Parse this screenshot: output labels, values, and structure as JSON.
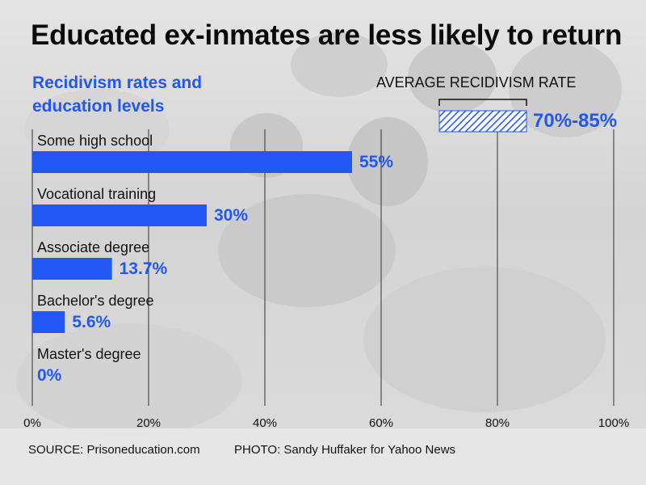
{
  "title": "Educated ex-inmates are less likely to return",
  "subtitle": "Recidivism rates and education levels",
  "average": {
    "label": "AVERAGE RECIDIVISM RATE",
    "value_text": "70%-85%",
    "low": 70,
    "high": 85
  },
  "footer": {
    "source": "SOURCE: Prisoneducation.com",
    "photo": "PHOTO: Sandy Huffaker for Yahoo News"
  },
  "colors": {
    "bar": "#2257f5",
    "text": "#111111"
  },
  "chart_data": {
    "type": "bar",
    "orientation": "horizontal",
    "categories": [
      "Some high school",
      "Vocational training",
      "Associate degree",
      "Bachelor's degree",
      "Master's degree"
    ],
    "values": [
      55,
      30,
      13.7,
      5.6,
      0
    ],
    "value_labels": [
      "55%",
      "30%",
      "13.7%",
      "5.6%",
      "0%"
    ],
    "xlim": [
      0,
      100
    ],
    "x_ticks": [
      0,
      20,
      40,
      60,
      80,
      100
    ],
    "x_tick_labels": [
      "0%",
      "20%",
      "40%",
      "60%",
      "80%",
      "100%"
    ],
    "grid": true
  }
}
